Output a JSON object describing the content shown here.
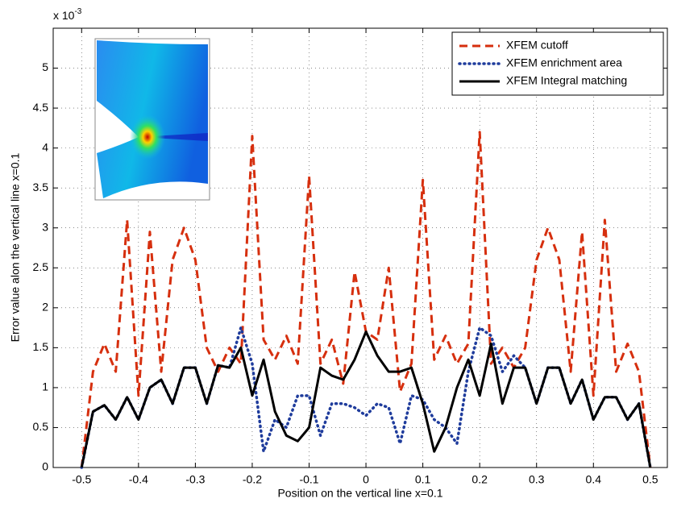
{
  "chart_data": {
    "type": "line",
    "xlabel": "Position on the vertical line x=0.1",
    "ylabel": "Error value alon the vertical line x=0.1",
    "y_multiplier": {
      "base": "x 10",
      "exponent": "-3"
    },
    "x": [
      -0.5,
      -0.48,
      -0.46,
      -0.44,
      -0.42,
      -0.4,
      -0.38,
      -0.36,
      -0.34,
      -0.32,
      -0.3,
      -0.28,
      -0.26,
      -0.24,
      -0.22,
      -0.2,
      -0.18,
      -0.16,
      -0.14,
      -0.12,
      -0.1,
      -0.08,
      -0.06,
      -0.04,
      -0.02,
      0,
      0.02,
      0.04,
      0.06,
      0.08,
      0.1,
      0.12,
      0.14,
      0.16,
      0.18,
      0.2,
      0.22,
      0.24,
      0.26,
      0.28,
      0.3,
      0.32,
      0.34,
      0.36,
      0.38,
      0.4,
      0.42,
      0.44,
      0.46,
      0.48,
      0.5
    ],
    "series": [
      {
        "name": "XFEM cutoff",
        "color": "#d62f0e",
        "style": "dashed",
        "values": [
          0,
          1.2,
          1.55,
          1.2,
          3.1,
          0.9,
          2.95,
          1.2,
          2.6,
          3.0,
          2.6,
          1.5,
          1.2,
          1.5,
          1.3,
          4.15,
          1.6,
          1.35,
          1.65,
          1.3,
          3.65,
          1.3,
          1.6,
          1.05,
          2.45,
          1.7,
          1.6,
          2.5,
          0.95,
          1.3,
          3.6,
          1.35,
          1.65,
          1.3,
          1.55,
          4.2,
          1.3,
          1.5,
          1.25,
          1.5,
          2.6,
          3.0,
          2.6,
          1.2,
          2.95,
          0.9,
          3.1,
          1.2,
          1.55,
          1.2,
          0
        ]
      },
      {
        "name": "XFEM enrichment area",
        "color": "#1f3c9c",
        "style": "dotted",
        "values": [
          0,
          0.7,
          0.78,
          0.6,
          0.88,
          0.6,
          1.0,
          1.1,
          0.8,
          1.25,
          1.25,
          0.8,
          1.28,
          1.25,
          1.75,
          1.3,
          0.2,
          0.6,
          0.5,
          0.9,
          0.9,
          0.4,
          0.8,
          0.8,
          0.75,
          0.65,
          0.8,
          0.75,
          0.3,
          0.9,
          0.85,
          0.6,
          0.5,
          0.3,
          1.2,
          1.75,
          1.65,
          1.2,
          1.4,
          1.25,
          0.8,
          1.25,
          1.25,
          0.8,
          1.1,
          0.6,
          0.88,
          0.88,
          0.6,
          0.8,
          0
        ]
      },
      {
        "name": "XFEM Integral matching",
        "color": "#000000",
        "style": "solid",
        "values": [
          0,
          0.7,
          0.78,
          0.6,
          0.88,
          0.6,
          1.0,
          1.1,
          0.8,
          1.25,
          1.25,
          0.8,
          1.28,
          1.25,
          1.5,
          0.9,
          1.35,
          0.7,
          0.4,
          0.33,
          0.5,
          1.25,
          1.15,
          1.1,
          1.35,
          1.7,
          1.4,
          1.2,
          1.2,
          1.25,
          0.8,
          0.2,
          0.5,
          1.0,
          1.35,
          0.9,
          1.55,
          0.8,
          1.25,
          1.25,
          0.8,
          1.25,
          1.25,
          0.8,
          1.1,
          0.6,
          0.88,
          0.88,
          0.6,
          0.8,
          0
        ]
      }
    ],
    "xlim": [
      -0.55,
      0.53
    ],
    "ylim": [
      0,
      5.5
    ],
    "xticks": [
      -0.5,
      -0.4,
      -0.3,
      -0.2,
      -0.1,
      0,
      0.1,
      0.2,
      0.3,
      0.4,
      0.5
    ],
    "yticks": [
      0,
      0.5,
      1,
      1.5,
      2,
      2.5,
      3,
      3.5,
      4,
      4.5,
      5
    ],
    "grid": true,
    "legend": "upper right"
  }
}
